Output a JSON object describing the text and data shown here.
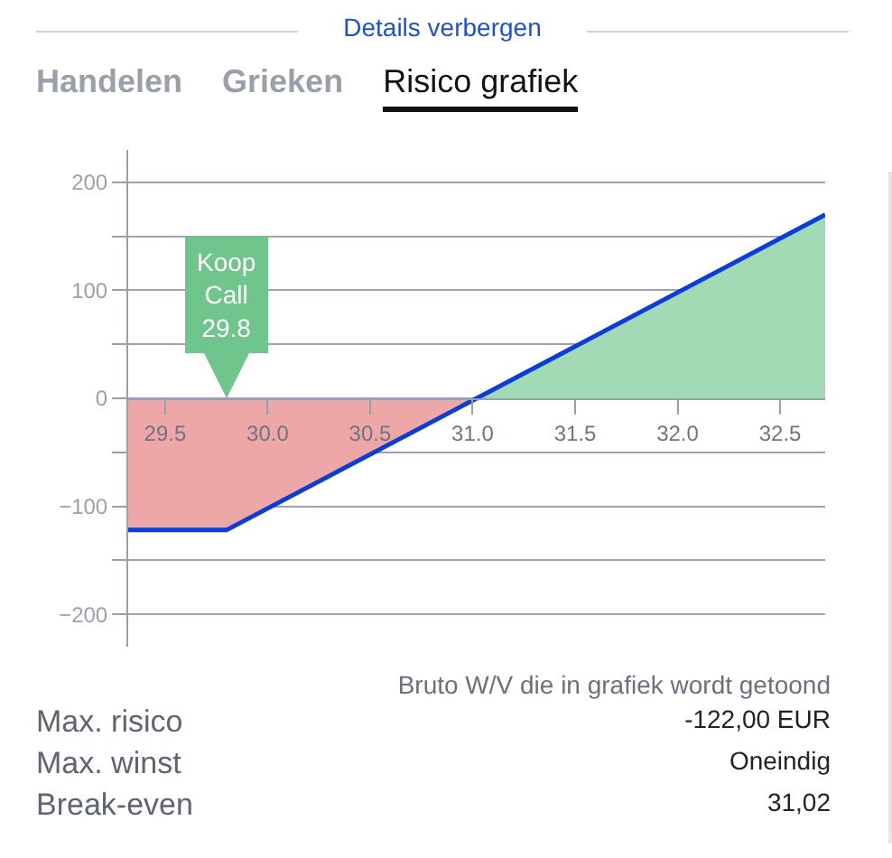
{
  "chart_data": {
    "type": "area",
    "annotations": [
      "Details verbergen",
      "Handelen",
      "Grieken",
      "Risico grafiek",
      "Bruto W/V die in grafiek wordt getoond",
      "Max. risico",
      "-122,00 EUR",
      "Max. winst",
      "Oneindig",
      "Break-even",
      "31,02",
      {
        "text": "Koop\nCall\n29.8",
        "x": 29.8,
        "y": 0
      }
    ],
    "series": [
      {
        "type": "area",
        "color": "#eea7a7",
        "x": [
          29.32,
          29.8,
          31.02
        ],
        "values": [
          -122,
          -122,
          0
        ]
      },
      {
        "type": "area",
        "color": "#a2dab6",
        "x": [
          31.02,
          32.72
        ],
        "values": [
          0,
          170
        ]
      },
      {
        "type": "line",
        "color": "#0b3ed8",
        "x": [
          29.32,
          29.8,
          31.02,
          32.72
        ],
        "values": [
          -122,
          -122,
          0,
          170
        ]
      }
    ],
    "xlim": [
      29.32,
      32.72
    ],
    "xticks": [
      29.5,
      {
        "value": 30,
        "label": "30.0"
      },
      30.5,
      {
        "value": 31,
        "label": "31.0"
      },
      31.5,
      {
        "value": 32,
        "label": "32.0"
      },
      32.5
    ],
    "ylim": [
      -230,
      230
    ],
    "yticks": [
      {
        "value": -200,
        "label": "−200"
      },
      {
        "value": -150,
        "label": null
      },
      {
        "value": -100,
        "label": "−100"
      },
      {
        "value": -50,
        "label": null
      },
      0,
      {
        "value": 50,
        "label": null
      },
      100,
      {
        "value": 150,
        "label": null
      },
      200
    ],
    "grid": "y",
    "legend": false,
    "marker": "none",
    "line_style": "solid"
  }
}
